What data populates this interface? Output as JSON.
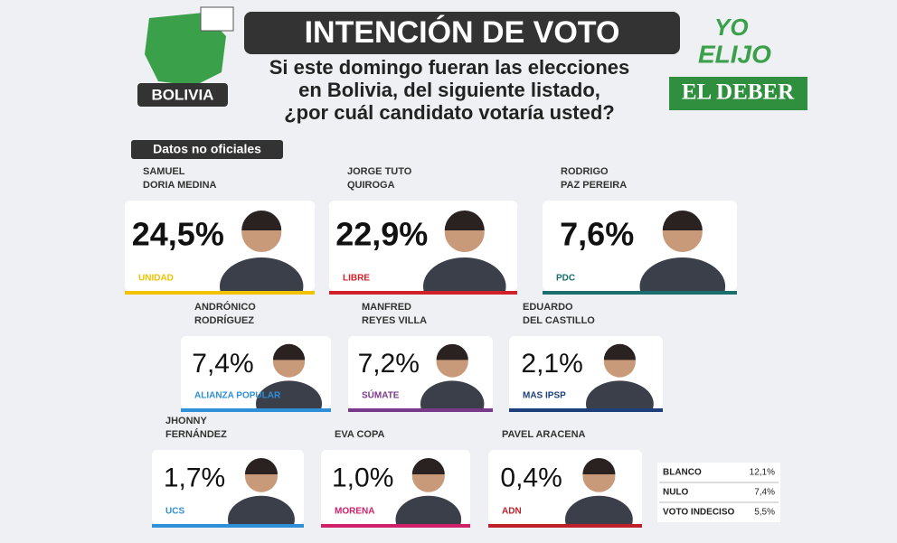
{
  "header": {
    "badge": "BOLIVIA",
    "title": "INTENCIÓN DE VOTO",
    "question": [
      "Si este domingo fueran las elecciones",
      "en Bolivia, del siguiente listado,",
      "¿por cuál candidato votaría usted?"
    ],
    "brand": [
      "YO",
      "ELIJO"
    ],
    "publisher": "EL DEBER",
    "note": "Datos no oficiales"
  },
  "candidates": [
    {
      "name": [
        "SAMUEL",
        "DORIA MEDINA"
      ],
      "percent": "24,5%",
      "party": "UNIDAD",
      "color": "#f2c200"
    },
    {
      "name": [
        "JORGE TUTO",
        "QUIROGA"
      ],
      "percent": "22,9%",
      "party": "LIBRE",
      "color": "#d0202a"
    },
    {
      "name": [
        "RODRIGO",
        "PAZ PEREIRA"
      ],
      "percent": "7,6%",
      "party": "PDC",
      "color": "#1a6e6e"
    },
    {
      "name": [
        "ANDRÓNICO",
        "RODRÍGUEZ"
      ],
      "percent": "7,4%",
      "party": "ALIANZA POPULAR",
      "color": "#2f8fd8"
    },
    {
      "name": [
        "MANFRED",
        "REYES VILLA"
      ],
      "percent": "7,2%",
      "party": "SÚMATE",
      "color": "#7a3a8c"
    },
    {
      "name": [
        "EDUARDO",
        "DEL CASTILLO"
      ],
      "percent": "2,1%",
      "party": "MAS IPSP",
      "color": "#1d3f7a"
    },
    {
      "name": [
        "JHONNY",
        "FERNÁNDEZ"
      ],
      "percent": "1,7%",
      "party": "UCS",
      "color": "#2f8fd8"
    },
    {
      "name": [
        "EVA COPA"
      ],
      "percent": "1,0%",
      "party": "MORENA",
      "color": "#d0206a"
    },
    {
      "name": [
        "PAVEL ARACENA"
      ],
      "percent": "0,4%",
      "party": "ADN",
      "color": "#c0202a"
    }
  ],
  "others": [
    [
      "BLANCO",
      "12,1%"
    ],
    [
      "NULO",
      "7,4%"
    ],
    [
      "VOTO INDECISO",
      "5,5%"
    ]
  ]
}
